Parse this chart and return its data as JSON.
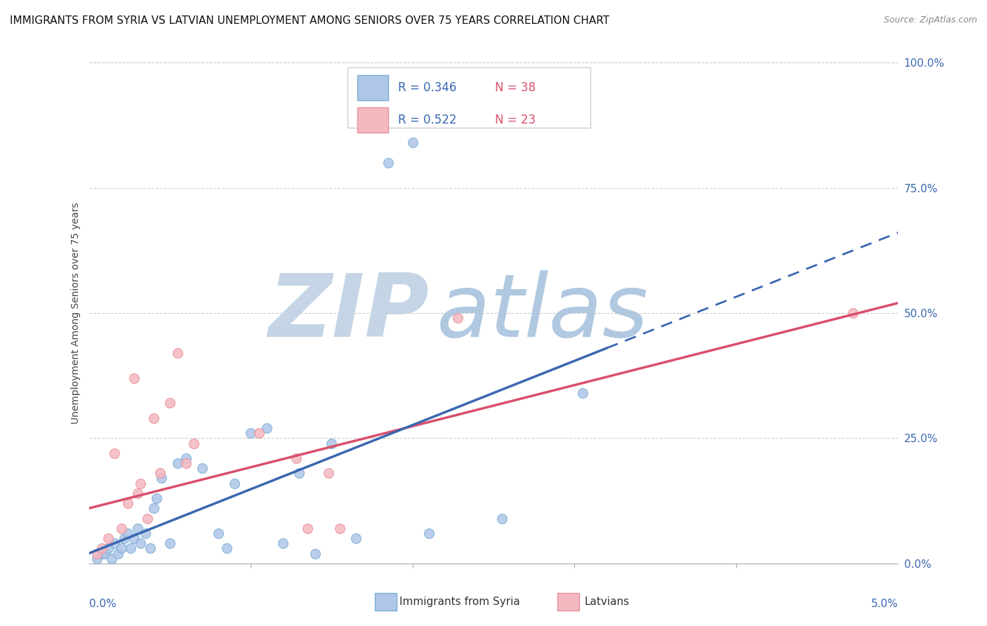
{
  "title": "IMMIGRANTS FROM SYRIA VS LATVIAN UNEMPLOYMENT AMONG SENIORS OVER 75 YEARS CORRELATION CHART",
  "source": "Source: ZipAtlas.com",
  "ylabel": "Unemployment Among Seniors over 75 years",
  "xlim": [
    0.0,
    5.0
  ],
  "ylim": [
    0.0,
    100.0
  ],
  "ytick_vals": [
    0,
    25,
    50,
    75,
    100
  ],
  "blue_r": "R = 0.346",
  "blue_n": "N = 38",
  "pink_r": "R = 0.522",
  "pink_n": "N = 23",
  "blue_fill": "#aec6e8",
  "pink_fill": "#f4b8c1",
  "blue_edge": "#7bafd4",
  "pink_edge": "#e8909a",
  "blue_line_color": "#3a67b0",
  "pink_line_color": "#d94f6b",
  "r_color": "#3a67b0",
  "n_color": "#d94f6b",
  "watermark_zip_color": "#c8d8e8",
  "watermark_atlas_color": "#b8cce4",
  "blue_x": [
    0.05,
    0.08,
    0.1,
    0.12,
    0.14,
    0.16,
    0.18,
    0.2,
    0.22,
    0.24,
    0.26,
    0.28,
    0.3,
    0.32,
    0.35,
    0.38,
    0.4,
    0.42,
    0.45,
    0.5,
    0.55,
    0.6,
    0.7,
    0.8,
    0.85,
    0.9,
    1.0,
    1.1,
    1.2,
    1.3,
    1.4,
    1.5,
    1.65,
    1.85,
    2.0,
    2.1,
    2.55,
    3.05
  ],
  "blue_y": [
    1,
    2,
    2,
    3,
    1,
    4,
    2,
    3,
    5,
    6,
    3,
    5,
    7,
    4,
    6,
    3,
    11,
    13,
    17,
    4,
    20,
    21,
    19,
    6,
    3,
    16,
    26,
    27,
    4,
    18,
    2,
    24,
    5,
    80,
    84,
    6,
    9,
    34
  ],
  "pink_x": [
    0.05,
    0.08,
    0.12,
    0.16,
    0.2,
    0.24,
    0.28,
    0.3,
    0.32,
    0.36,
    0.4,
    0.44,
    0.5,
    0.55,
    0.6,
    0.65,
    1.05,
    1.28,
    1.35,
    1.48,
    1.55,
    2.28,
    4.72
  ],
  "pink_y": [
    2,
    3,
    5,
    22,
    7,
    12,
    37,
    14,
    16,
    9,
    29,
    18,
    32,
    42,
    20,
    24,
    26,
    21,
    7,
    18,
    7,
    49,
    50
  ],
  "blue_trend_x0": 0.0,
  "blue_trend_x1": 3.2,
  "blue_trend_y0": 2.0,
  "blue_trend_y1": 43.0,
  "pink_trend_x0": 0.0,
  "pink_trend_x1": 5.0,
  "pink_trend_y0": 11.0,
  "pink_trend_y1": 52.0,
  "marker_size": 100,
  "title_fontsize": 11,
  "tick_label_fontsize": 11,
  "ylabel_fontsize": 10,
  "legend_fontsize": 12
}
